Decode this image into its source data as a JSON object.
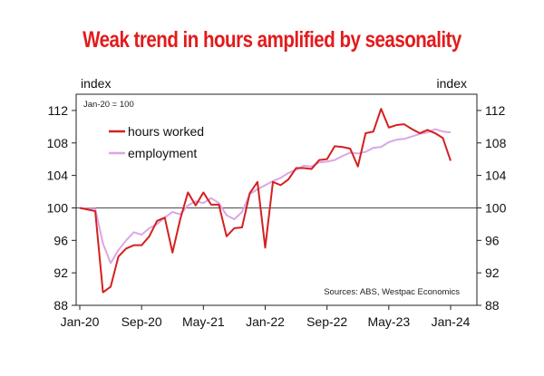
{
  "chart_data": {
    "type": "line",
    "title": "Weak trend in hours amplified by seasonality",
    "y_unit_left": "index",
    "y_unit_right": "index",
    "base_note": "Jan-20 = 100",
    "source": "Sources: ABS, Westpac Economics",
    "ylim": [
      88,
      114
    ],
    "yticks": [
      88,
      92,
      96,
      100,
      104,
      108,
      112
    ],
    "xtick_labels": [
      "Jan-20",
      "Sep-20",
      "May-21",
      "Jan-22",
      "Sep-22",
      "May-23",
      "Jan-24"
    ],
    "xtick_month_index": [
      0,
      8,
      16,
      24,
      32,
      40,
      48
    ],
    "x_month_range": [
      0,
      48
    ],
    "reference_line": 100,
    "grid": false,
    "legend_position": "top-left",
    "series": [
      {
        "name": "hours worked",
        "color": "#d42020",
        "values": [
          100.0,
          99.8,
          99.6,
          89.6,
          90.3,
          94.0,
          95.0,
          95.4,
          95.4,
          96.5,
          98.4,
          98.8,
          94.5,
          98.6,
          101.9,
          100.3,
          101.9,
          100.4,
          100.4,
          96.5,
          97.5,
          97.6,
          101.8,
          103.2,
          95.1,
          103.2,
          102.8,
          103.5,
          104.9,
          104.9,
          104.8,
          105.9,
          106.0,
          107.6,
          107.5,
          107.3,
          105.1,
          109.2,
          109.4,
          112.2,
          109.9,
          110.2,
          110.3,
          109.7,
          109.2,
          109.6,
          109.2,
          108.6,
          105.8
        ]
      },
      {
        "name": "employment",
        "color": "#dba6e6",
        "values": [
          100.0,
          99.9,
          99.9,
          95.6,
          93.2,
          94.8,
          96.0,
          97.0,
          96.7,
          97.5,
          98.0,
          98.8,
          99.5,
          99.2,
          100.3,
          100.8,
          100.6,
          101.2,
          100.6,
          99.1,
          98.6,
          99.5,
          101.7,
          102.3,
          102.8,
          103.3,
          103.7,
          104.3,
          104.7,
          105.2,
          105.1,
          105.6,
          105.7,
          105.9,
          106.4,
          106.8,
          106.7,
          106.9,
          107.4,
          107.5,
          108.1,
          108.4,
          108.5,
          108.8,
          109.1,
          109.3,
          109.7,
          109.4,
          109.3
        ]
      }
    ]
  }
}
